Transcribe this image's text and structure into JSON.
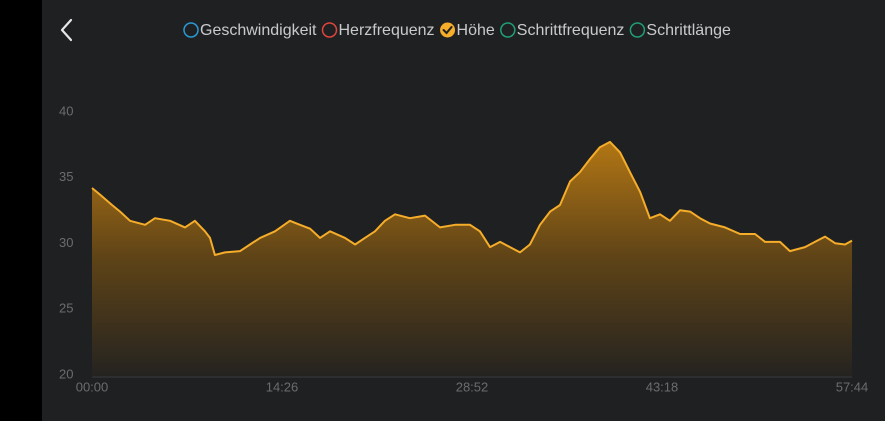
{
  "chart_data": {
    "type": "area",
    "series": [
      {
        "name": "Geschwindigkeit",
        "color": "#2a9ad4",
        "checked": false
      },
      {
        "name": "Herzfrequenz",
        "color": "#e0443c",
        "checked": false
      },
      {
        "name": "Höhe",
        "color": "#f5ad2a",
        "checked": true,
        "x": [
          0,
          36,
          91,
          128,
          173,
          242,
          287,
          356,
          424,
          469,
          515,
          538,
          560,
          606,
          675,
          720,
          766,
          834,
          902,
          948,
          994,
          1039,
          1085,
          1153,
          1199,
          1244,
          1290,
          1335,
          1381,
          1449,
          1518,
          1586,
          1655,
          1723,
          1768,
          1814,
          1860,
          1905,
          1951,
          1996,
          2042,
          2088,
          2133,
          2179,
          2224,
          2270,
          2315,
          2361,
          2407,
          2452,
          2498,
          2543,
          2589,
          2634,
          2680,
          2726,
          2771,
          2817,
          2885,
          2954,
          3022,
          3068,
          3136,
          3181,
          3250,
          3295,
          3341,
          3387,
          3432,
          3464
        ],
        "values": [
          34.3,
          33.8,
          33,
          32.5,
          31.8,
          31.5,
          32,
          31.8,
          31.3,
          31.8,
          31,
          30.5,
          29.2,
          29.4,
          29.5,
          30,
          30.5,
          31,
          31.8,
          31.5,
          31.2,
          30.5,
          31,
          30.5,
          30,
          30.5,
          31,
          31.8,
          32.3,
          32,
          32.2,
          31.3,
          31.5,
          31.5,
          31,
          29.8,
          30.2,
          29.8,
          29.4,
          30,
          31.5,
          32.5,
          33,
          34.8,
          35.5,
          36.5,
          37.4,
          37.8,
          37,
          35.5,
          34,
          32,
          32.3,
          31.8,
          32.6,
          32.5,
          32,
          31.6,
          31.3,
          30.8,
          30.8,
          30.2,
          30.2,
          29.5,
          29.8,
          30.2,
          30.6,
          30.1,
          30,
          30.3
        ]
      },
      {
        "name": "Schrittfrequenz",
        "color": "#1f9e78",
        "checked": false
      },
      {
        "name": "Schrittlänge",
        "color": "#1f9e78",
        "checked": false
      }
    ],
    "xlim": [
      0,
      3464
    ],
    "xticks": [
      {
        "value": 0,
        "label": "00:00"
      },
      {
        "value": 866,
        "label": "14:26"
      },
      {
        "value": 1732,
        "label": "28:52"
      },
      {
        "value": 2598,
        "label": "43:18"
      },
      {
        "value": 3464,
        "label": "57:44"
      }
    ],
    "ylim": [
      20,
      40
    ],
    "yticks": [
      20,
      25,
      30,
      35,
      40
    ]
  }
}
